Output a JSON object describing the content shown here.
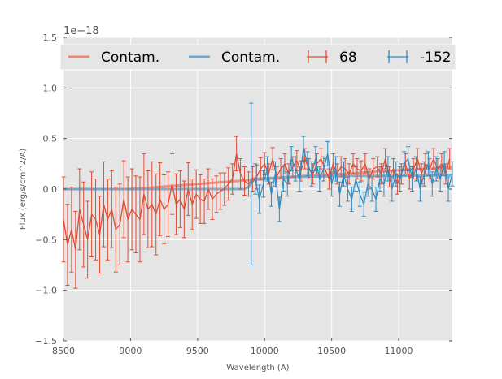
{
  "chart_data": {
    "type": "line",
    "title": "",
    "xlabel": "Wavelength (A)",
    "ylabel": "Flux (erg/s/cm^2/A)",
    "y_offset_label": "1e−18",
    "xlim": [
      8500,
      11400
    ],
    "ylim": [
      -1.5,
      1.5
    ],
    "x_ticks": [
      8500,
      9000,
      9500,
      10000,
      10500,
      11000
    ],
    "y_ticks": [
      -1.5,
      -1.0,
      -0.5,
      0.0,
      0.5,
      1.0,
      1.5
    ],
    "x_tick_labels": [
      "8500",
      "9000",
      "9500",
      "10000",
      "10500",
      "11000"
    ],
    "y_tick_labels": [
      "−1.5",
      "−1.0",
      "−0.5",
      "0.0",
      "0.5",
      "1.0",
      "1.5"
    ],
    "grid": true,
    "legend_position": "top",
    "colors": {
      "red": "#e24a33",
      "blue": "#348abd",
      "red_light": "#e8877a",
      "blue_light": "#6fa8cf",
      "background": "#e5e5e5"
    },
    "legend": [
      {
        "label": "Contam.",
        "kind": "line",
        "color": "#e8877a"
      },
      {
        "label": "Contam.",
        "kind": "line",
        "color": "#6fa8cf"
      },
      {
        "label": "68",
        "kind": "errorbar",
        "color": "#e24a33"
      },
      {
        "label": "-152",
        "kind": "errorbar",
        "color": "#348abd"
      }
    ],
    "series": [
      {
        "name": "68",
        "kind": "errorbar",
        "color": "#e24a33",
        "x": [
          8500,
          8530,
          8560,
          8590,
          8620,
          8650,
          8680,
          8710,
          8740,
          8770,
          8800,
          8830,
          8860,
          8890,
          8920,
          8950,
          8980,
          9010,
          9040,
          9070,
          9100,
          9130,
          9160,
          9190,
          9220,
          9250,
          9280,
          9310,
          9340,
          9370,
          9400,
          9430,
          9460,
          9490,
          9520,
          9550,
          9580,
          9610,
          9640,
          9670,
          9700,
          9730,
          9760,
          9790,
          9820,
          9850,
          9880,
          9910,
          9940,
          9970,
          10000,
          10030,
          10060,
          10090,
          10120,
          10150,
          10180,
          10210,
          10240,
          10270,
          10300,
          10330,
          10360,
          10390,
          10420,
          10450,
          10480,
          10510,
          10540,
          10570,
          10600,
          10630,
          10660,
          10690,
          10720,
          10750,
          10780,
          10810,
          10840,
          10870,
          10900,
          10930,
          10960,
          10990,
          11020,
          11050,
          11080,
          11110,
          11140,
          11170,
          11200,
          11230,
          11260,
          11290,
          11320,
          11350,
          11380
        ],
        "y": [
          -0.3,
          -0.55,
          -0.4,
          -0.6,
          -0.2,
          -0.35,
          -0.5,
          -0.25,
          -0.3,
          -0.45,
          -0.15,
          -0.3,
          -0.2,
          -0.4,
          -0.35,
          -0.1,
          -0.3,
          -0.2,
          -0.25,
          -0.3,
          -0.05,
          -0.2,
          -0.15,
          -0.25,
          -0.1,
          -0.2,
          -0.15,
          0.05,
          -0.15,
          -0.1,
          -0.2,
          0.0,
          -0.15,
          -0.05,
          -0.1,
          -0.12,
          0.0,
          -0.1,
          -0.05,
          -0.02,
          0.0,
          0.05,
          0.1,
          0.35,
          0.15,
          0.08,
          0.05,
          0.1,
          0.12,
          0.2,
          0.25,
          0.15,
          0.3,
          0.12,
          0.2,
          0.25,
          0.15,
          0.22,
          0.28,
          0.18,
          0.3,
          0.2,
          0.15,
          0.25,
          0.3,
          0.2,
          0.1,
          0.25,
          0.15,
          0.22,
          0.2,
          0.15,
          0.25,
          0.2,
          0.18,
          0.25,
          0.1,
          0.2,
          0.22,
          0.15,
          0.3,
          0.12,
          0.2,
          0.05,
          0.15,
          0.25,
          0.1,
          0.2,
          0.3,
          0.15,
          0.25,
          0.2,
          0.3,
          0.2,
          0.25,
          0.15,
          0.3
        ],
        "err": [
          0.42,
          0.4,
          0.42,
          0.38,
          0.4,
          0.42,
          0.38,
          0.42,
          0.4,
          0.38,
          0.42,
          0.4,
          0.38,
          0.42,
          0.4,
          0.38,
          0.42,
          0.4,
          0.38,
          0.42,
          0.4,
          0.38,
          0.42,
          0.4,
          0.36,
          0.34,
          0.32,
          0.3,
          0.3,
          0.28,
          0.28,
          0.26,
          0.25,
          0.24,
          0.24,
          0.22,
          0.2,
          0.2,
          0.18,
          0.18,
          0.16,
          0.16,
          0.15,
          0.17,
          0.15,
          0.14,
          0.12,
          0.12,
          0.12,
          0.11,
          0.11,
          0.1,
          0.11,
          0.1,
          0.1,
          0.1,
          0.1,
          0.1,
          0.1,
          0.1,
          0.1,
          0.1,
          0.1,
          0.1,
          0.1,
          0.1,
          0.1,
          0.1,
          0.1,
          0.1,
          0.1,
          0.1,
          0.1,
          0.1,
          0.1,
          0.1,
          0.1,
          0.1,
          0.1,
          0.1,
          0.1,
          0.1,
          0.1,
          0.1,
          0.1,
          0.1,
          0.1,
          0.1,
          0.1,
          0.1,
          0.1,
          0.1,
          0.1,
          0.1,
          0.1,
          0.1,
          0.1
        ]
      },
      {
        "name": "-152",
        "kind": "errorbar",
        "color": "#348abd",
        "x": [
          9900,
          9930,
          9960,
          9990,
          10020,
          10050,
          10080,
          10110,
          10140,
          10170,
          10200,
          10230,
          10260,
          10290,
          10320,
          10350,
          10380,
          10410,
          10440,
          10470,
          10500,
          10530,
          10560,
          10590,
          10620,
          10650,
          10680,
          10710,
          10740,
          10770,
          10800,
          10830,
          10860,
          10890,
          10920,
          10950,
          10980,
          11010,
          11040,
          11070,
          11100,
          11130,
          11160,
          11190,
          11220,
          11250,
          11280,
          11310,
          11340,
          11370,
          11400
        ],
        "y": [
          0.05,
          0.1,
          -0.1,
          0.05,
          0.2,
          -0.05,
          0.15,
          -0.2,
          0.1,
          0.05,
          0.3,
          0.2,
          0.1,
          0.4,
          0.25,
          0.15,
          0.3,
          0.1,
          0.2,
          0.35,
          0.05,
          0.2,
          -0.05,
          0.15,
          0.0,
          -0.1,
          0.1,
          -0.05,
          -0.15,
          0.05,
          0.0,
          -0.1,
          0.1,
          0.05,
          0.2,
          0.0,
          0.15,
          0.1,
          0.25,
          0.3,
          0.1,
          0.2,
          0.0,
          0.15,
          0.25,
          0.05,
          0.2,
          0.1,
          0.25,
          0.0,
          0.15
        ],
        "err": [
          0.8,
          0.15,
          0.14,
          0.13,
          0.12,
          0.12,
          0.12,
          0.12,
          0.12,
          0.12,
          0.12,
          0.12,
          0.12,
          0.12,
          0.12,
          0.12,
          0.12,
          0.12,
          0.12,
          0.12,
          0.12,
          0.12,
          0.12,
          0.12,
          0.12,
          0.12,
          0.12,
          0.12,
          0.12,
          0.12,
          0.12,
          0.12,
          0.12,
          0.12,
          0.12,
          0.12,
          0.12,
          0.12,
          0.12,
          0.12,
          0.12,
          0.12,
          0.12,
          0.12,
          0.12,
          0.12,
          0.12,
          0.12,
          0.12,
          0.12,
          0.12
        ]
      },
      {
        "name": "Contam.",
        "kind": "line",
        "color": "#e8877a",
        "x": [
          8500,
          9000,
          9500,
          9800,
          10000,
          10300,
          10600,
          10900,
          11200,
          11400
        ],
        "y": [
          0.0,
          0.0,
          0.05,
          0.08,
          0.1,
          0.13,
          0.15,
          0.18,
          0.2,
          0.22
        ]
      },
      {
        "name": "Contam.",
        "kind": "line",
        "color": "#6fa8cf",
        "x": [
          8500,
          9000,
          9500,
          9850,
          9880,
          9910,
          10200,
          10600,
          11000,
          11400
        ],
        "y": [
          0.0,
          0.0,
          0.0,
          0.0,
          0.02,
          0.1,
          0.12,
          0.13,
          0.13,
          0.14
        ]
      }
    ]
  }
}
